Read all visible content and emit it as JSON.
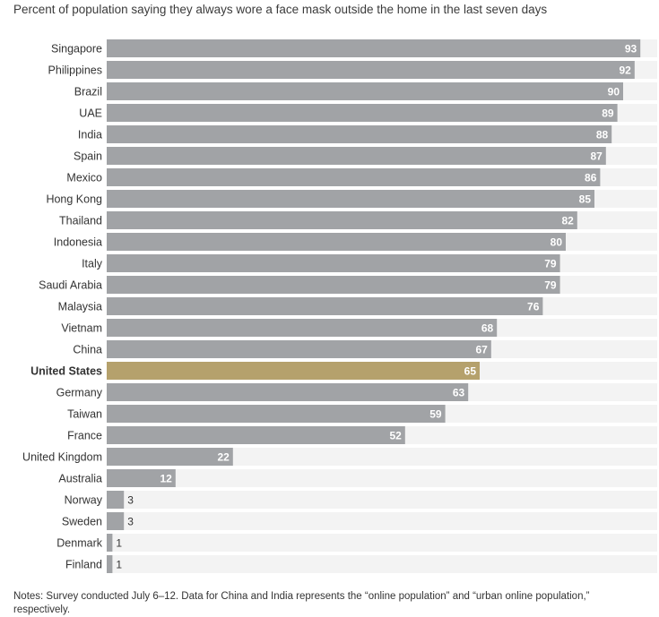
{
  "chart_data": {
    "type": "bar",
    "orientation": "horizontal",
    "title": "Percent of population saying they always wore a face mask outside the home in the last seven days",
    "categories": [
      "Singapore",
      "Philippines",
      "Brazil",
      "UAE",
      "India",
      "Spain",
      "Mexico",
      "Hong Kong",
      "Thailand",
      "Indonesia",
      "Italy",
      "Saudi Arabia",
      "Malaysia",
      "Vietnam",
      "China",
      "United States",
      "Germany",
      "Taiwan",
      "France",
      "United Kingdom",
      "Australia",
      "Norway",
      "Sweden",
      "Denmark",
      "Finland"
    ],
    "values": [
      93,
      92,
      90,
      89,
      88,
      87,
      86,
      85,
      82,
      80,
      79,
      79,
      76,
      68,
      67,
      65,
      63,
      59,
      52,
      22,
      12,
      3,
      3,
      1,
      1
    ],
    "highlight": "United States",
    "xlim": [
      0,
      100
    ],
    "xlabel": "",
    "ylabel": "",
    "grid": false,
    "legend": "none",
    "colors": {
      "bar": "#a1a3a6",
      "highlight": "#b5a16c",
      "track": "#f3f3f3",
      "value_label": "#ffffff",
      "value_label_outside": "#333333",
      "category_label": "#333333"
    }
  },
  "notes": "Notes: Survey conducted July 6–12. Data for China and India represents the “online population” and “urban online population,” respectively."
}
